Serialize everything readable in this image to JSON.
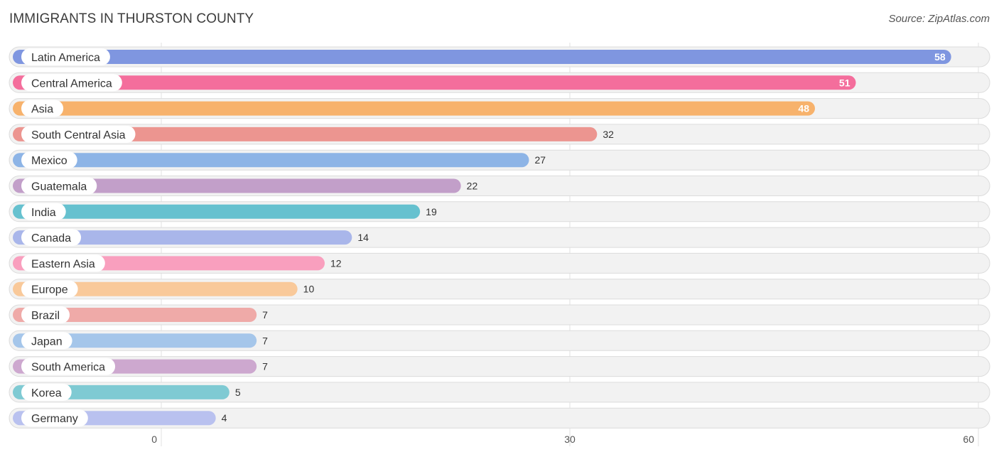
{
  "title": "IMMIGRANTS IN THURSTON COUNTY",
  "source": "Source: ZipAtlas.com",
  "chart_data": {
    "type": "bar",
    "orientation": "horizontal",
    "title": "IMMIGRANTS IN THURSTON COUNTY",
    "categories": [
      "Latin America",
      "Central America",
      "Asia",
      "South Central Asia",
      "Mexico",
      "Guatemala",
      "India",
      "Canada",
      "Eastern Asia",
      "Europe",
      "Brazil",
      "Japan",
      "South America",
      "Korea",
      "Germany"
    ],
    "values": [
      58,
      51,
      48,
      32,
      27,
      22,
      19,
      14,
      12,
      10,
      7,
      7,
      7,
      5,
      4
    ],
    "colors": [
      "#7f96e0",
      "#f46e9c",
      "#f7b26c",
      "#ec9590",
      "#8db4e6",
      "#c29fc9",
      "#66c1cf",
      "#a9b6ea",
      "#f99fbe",
      "#f9c99a",
      "#efaaa8",
      "#a5c6ea",
      "#cda8cf",
      "#7fcad3",
      "#b9c1ef"
    ],
    "xlim": [
      0,
      60
    ],
    "xticks": [
      0,
      30,
      60
    ],
    "grid": true,
    "legend": "none"
  }
}
